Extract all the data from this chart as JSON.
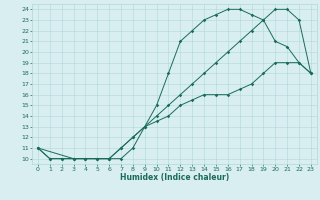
{
  "xlabel": "Humidex (Indice chaleur)",
  "bg_color": "#d8eef0",
  "grid_color": "#b0d8d8",
  "line_color": "#1a6b5a",
  "xlim": [
    -0.5,
    23.5
  ],
  "ylim": [
    9.5,
    24.5
  ],
  "xticks": [
    0,
    1,
    2,
    3,
    4,
    5,
    6,
    7,
    8,
    9,
    10,
    11,
    12,
    13,
    14,
    15,
    16,
    17,
    18,
    19,
    20,
    21,
    22,
    23
  ],
  "yticks": [
    10,
    11,
    12,
    13,
    14,
    15,
    16,
    17,
    18,
    19,
    20,
    21,
    22,
    23,
    24
  ],
  "line1_x": [
    0,
    1,
    2,
    3,
    4,
    5,
    6,
    7,
    8,
    9,
    10,
    11,
    12,
    13,
    14,
    15,
    16,
    17,
    18,
    19,
    20,
    21,
    22,
    23
  ],
  "line1_y": [
    11,
    10,
    10,
    10,
    10,
    10,
    10,
    11,
    12,
    13,
    13.5,
    14,
    15,
    15.5,
    16,
    16,
    16,
    16.5,
    17,
    18,
    19,
    19,
    19,
    18
  ],
  "line2_x": [
    0,
    1,
    2,
    3,
    4,
    5,
    6,
    7,
    8,
    9,
    10,
    11,
    12,
    13,
    14,
    15,
    16,
    17,
    18,
    19,
    20,
    21,
    22,
    23
  ],
  "line2_y": [
    11,
    10,
    10,
    10,
    10,
    10,
    10,
    11,
    12,
    13,
    14,
    15,
    16,
    17,
    18,
    19,
    20,
    21,
    22,
    23,
    24,
    24,
    23,
    18
  ],
  "line3_x": [
    0,
    3,
    4,
    5,
    6,
    7,
    8,
    9,
    10,
    11,
    12,
    13,
    14,
    15,
    16,
    17,
    18,
    19,
    20,
    21,
    22,
    23
  ],
  "line3_y": [
    11,
    10,
    10,
    10,
    10,
    10,
    11,
    13,
    15,
    18,
    21,
    22,
    23,
    23.5,
    24,
    24,
    23.5,
    23,
    21,
    20.5,
    19,
    18
  ]
}
